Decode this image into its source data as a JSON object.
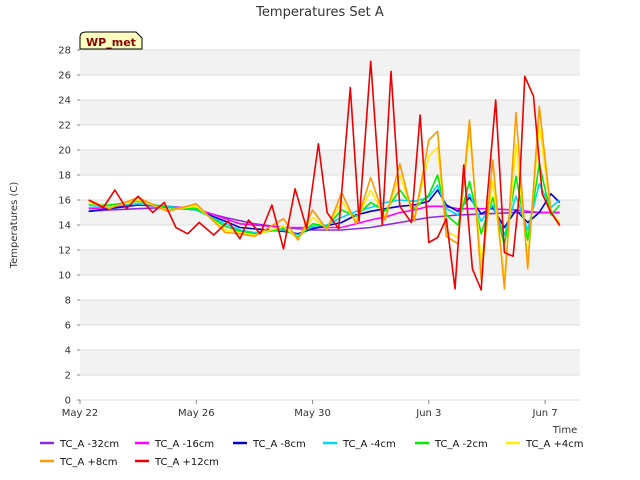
{
  "chart_data": {
    "type": "line",
    "title": "Temperatures Set A",
    "xlabel": "Time",
    "ylabel": "Temperatures (C)",
    "badge": "WP_met",
    "x_unit": "day",
    "xlim": [
      0,
      17.2
    ],
    "ylim": [
      0,
      28
    ],
    "yticks": [
      0,
      2,
      4,
      6,
      8,
      10,
      12,
      14,
      16,
      18,
      20,
      22,
      24,
      26,
      28
    ],
    "xticks": [
      {
        "label": "May 22",
        "value": 0
      },
      {
        "label": "May 26",
        "value": 4
      },
      {
        "label": "May 30",
        "value": 8
      },
      {
        "label": "Jun 3",
        "value": 12
      },
      {
        "label": "Jun 7",
        "value": 16
      }
    ],
    "grid": true,
    "legend_position": "bottom",
    "series": [
      {
        "name": "TC_A -32cm",
        "color": "#8a2be2",
        "x": [
          0.3,
          1,
          2,
          3,
          4,
          5,
          6,
          7,
          8,
          9,
          10,
          11,
          12,
          13,
          14,
          15,
          16,
          16.5
        ],
        "y": [
          15.1,
          15.2,
          15.3,
          15.4,
          15.2,
          14.6,
          14.1,
          13.8,
          13.6,
          13.6,
          13.8,
          14.2,
          14.6,
          14.8,
          14.9,
          15.0,
          15.0,
          15.0
        ]
      },
      {
        "name": "TC_A -16cm",
        "color": "#ff00ff",
        "x": [
          0.3,
          1,
          2,
          3,
          4,
          5,
          5.5,
          6,
          7,
          8,
          9,
          10,
          10.6,
          11,
          11.5,
          12,
          12.5,
          13,
          14,
          15,
          15.8,
          16.5
        ],
        "y": [
          15.3,
          15.4,
          15.6,
          15.5,
          15.3,
          14.5,
          14.1,
          14.0,
          13.8,
          13.8,
          13.8,
          14.4,
          14.7,
          15.0,
          15.2,
          15.5,
          15.5,
          15.3,
          15.3,
          15.2,
          15.0,
          15.0
        ]
      },
      {
        "name": "TC_A -8cm",
        "color": "#0000cc",
        "x": [
          0.3,
          1,
          2,
          3,
          4,
          5,
          5.5,
          6,
          7,
          7.5,
          8,
          9,
          9.5,
          10,
          10.5,
          11,
          11.5,
          12,
          12.3,
          12.6,
          13,
          13.4,
          13.8,
          14.2,
          14.6,
          15,
          15.4,
          15.8,
          16.2,
          16.5
        ],
        "y": [
          15.1,
          15.3,
          15.6,
          15.5,
          15.2,
          14.3,
          13.8,
          13.7,
          13.5,
          13.3,
          13.7,
          14.2,
          14.8,
          15.1,
          15.3,
          15.5,
          15.6,
          15.9,
          16.8,
          15.6,
          15.1,
          16.2,
          14.9,
          15.4,
          13.8,
          15.2,
          14.2,
          15.0,
          16.5,
          15.8
        ]
      },
      {
        "name": "TC_A -4cm",
        "color": "#00d5ff",
        "x": [
          0.3,
          1,
          2,
          3,
          4,
          5,
          5.5,
          6,
          7,
          7.5,
          8,
          8.5,
          9,
          9.5,
          10,
          10.5,
          11,
          11.5,
          12,
          12.3,
          12.6,
          13,
          13.4,
          13.8,
          14.2,
          14.6,
          15,
          15.4,
          15.8,
          16.2,
          16.5
        ],
        "y": [
          15.4,
          15.5,
          15.7,
          15.5,
          15.2,
          14.1,
          13.6,
          13.4,
          13.6,
          13.2,
          13.9,
          14.0,
          14.6,
          15.1,
          15.4,
          15.8,
          16.0,
          15.9,
          16.2,
          17.2,
          15.3,
          14.8,
          16.5,
          14.3,
          15.6,
          13.2,
          16.3,
          13.6,
          17.3,
          15.4,
          16.0
        ]
      },
      {
        "name": "TC_A -2cm",
        "color": "#00ee00",
        "x": [
          0.3,
          1,
          2,
          3,
          4,
          5,
          5.5,
          6,
          7,
          7.5,
          8,
          8.5,
          9,
          9.5,
          10,
          10.5,
          11,
          11.5,
          12,
          12.3,
          12.6,
          13,
          13.4,
          13.8,
          14.2,
          14.6,
          15,
          15.4,
          15.8,
          16.2,
          16.5
        ],
        "y": [
          15.6,
          15.6,
          15.9,
          15.4,
          15.3,
          13.9,
          13.5,
          13.3,
          13.7,
          13.0,
          14.1,
          13.9,
          15.2,
          14.7,
          15.8,
          15.1,
          16.8,
          15.3,
          16.4,
          18.0,
          14.8,
          14.0,
          17.5,
          13.3,
          16.2,
          12.4,
          17.9,
          12.8,
          18.9,
          14.8,
          15.6
        ]
      },
      {
        "name": "TC_A +4cm",
        "color": "#ffee00",
        "x": [
          0.3,
          1,
          2,
          3,
          4,
          5,
          5.5,
          6,
          7,
          7.5,
          8,
          8.5,
          9,
          9.5,
          10,
          10.5,
          11,
          11.5,
          12,
          12.3,
          12.6,
          13,
          13.4,
          13.8,
          14.2,
          14.6,
          15,
          15.4,
          15.8,
          16.2,
          16.5
        ],
        "y": [
          15.8,
          15.4,
          16.0,
          15.2,
          15.5,
          13.6,
          13.4,
          13.2,
          13.9,
          12.9,
          14.6,
          13.7,
          15.9,
          14.3,
          16.8,
          14.6,
          18.0,
          14.6,
          19.5,
          20.2,
          13.5,
          13.0,
          21.5,
          11.0,
          17.5,
          9.6,
          20.5,
          11.2,
          22.0,
          15.0,
          14.2
        ]
      },
      {
        "name": "TC_A +8cm",
        "color": "#ff9900",
        "x": [
          0.3,
          1,
          2,
          3,
          4,
          5,
          5.5,
          6,
          7,
          7.5,
          8,
          8.5,
          9,
          9.5,
          10,
          10.5,
          11,
          11.5,
          12,
          12.3,
          12.6,
          13,
          13.4,
          13.8,
          14.2,
          14.6,
          15,
          15.4,
          15.8,
          16.2,
          16.5
        ],
        "y": [
          16.0,
          15.3,
          16.2,
          15.1,
          15.7,
          13.4,
          13.3,
          13.1,
          14.5,
          12.8,
          15.2,
          13.6,
          16.6,
          14.1,
          17.8,
          14.4,
          18.9,
          14.3,
          20.8,
          21.5,
          13.1,
          12.5,
          22.4,
          9.6,
          19.2,
          8.9,
          23.0,
          10.5,
          23.5,
          15.1,
          13.9
        ]
      },
      {
        "name": "TC_A +12cm",
        "color": "#ee0000",
        "x": [
          0.3,
          0.8,
          1.2,
          1.6,
          2,
          2.5,
          2.9,
          3.3,
          3.7,
          4.1,
          4.6,
          5.1,
          5.5,
          5.8,
          6.2,
          6.6,
          7.0,
          7.4,
          7.8,
          8.2,
          8.5,
          8.9,
          9.3,
          9.6,
          10.0,
          10.4,
          10.7,
          11.0,
          11.4,
          11.7,
          12.0,
          12.3,
          12.6,
          12.9,
          13.2,
          13.5,
          13.8,
          14.0,
          14.3,
          14.6,
          14.9,
          15.1,
          15.3,
          15.6,
          15.9,
          16.2,
          16.5
        ],
        "y": [
          16.0,
          15.4,
          16.8,
          15.3,
          16.3,
          15.0,
          15.8,
          13.8,
          13.3,
          14.2,
          13.2,
          14.3,
          12.9,
          14.4,
          13.3,
          15.6,
          12.1,
          16.9,
          13.7,
          20.5,
          15.0,
          13.7,
          25.0,
          14.3,
          27.1,
          14.0,
          26.3,
          15.5,
          14.2,
          22.8,
          12.6,
          13.0,
          14.5,
          8.9,
          18.8,
          10.5,
          8.8,
          16.0,
          24.0,
          11.8,
          11.5,
          16.2,
          25.9,
          24.3,
          16.5,
          15.0,
          14.0
        ]
      }
    ]
  }
}
